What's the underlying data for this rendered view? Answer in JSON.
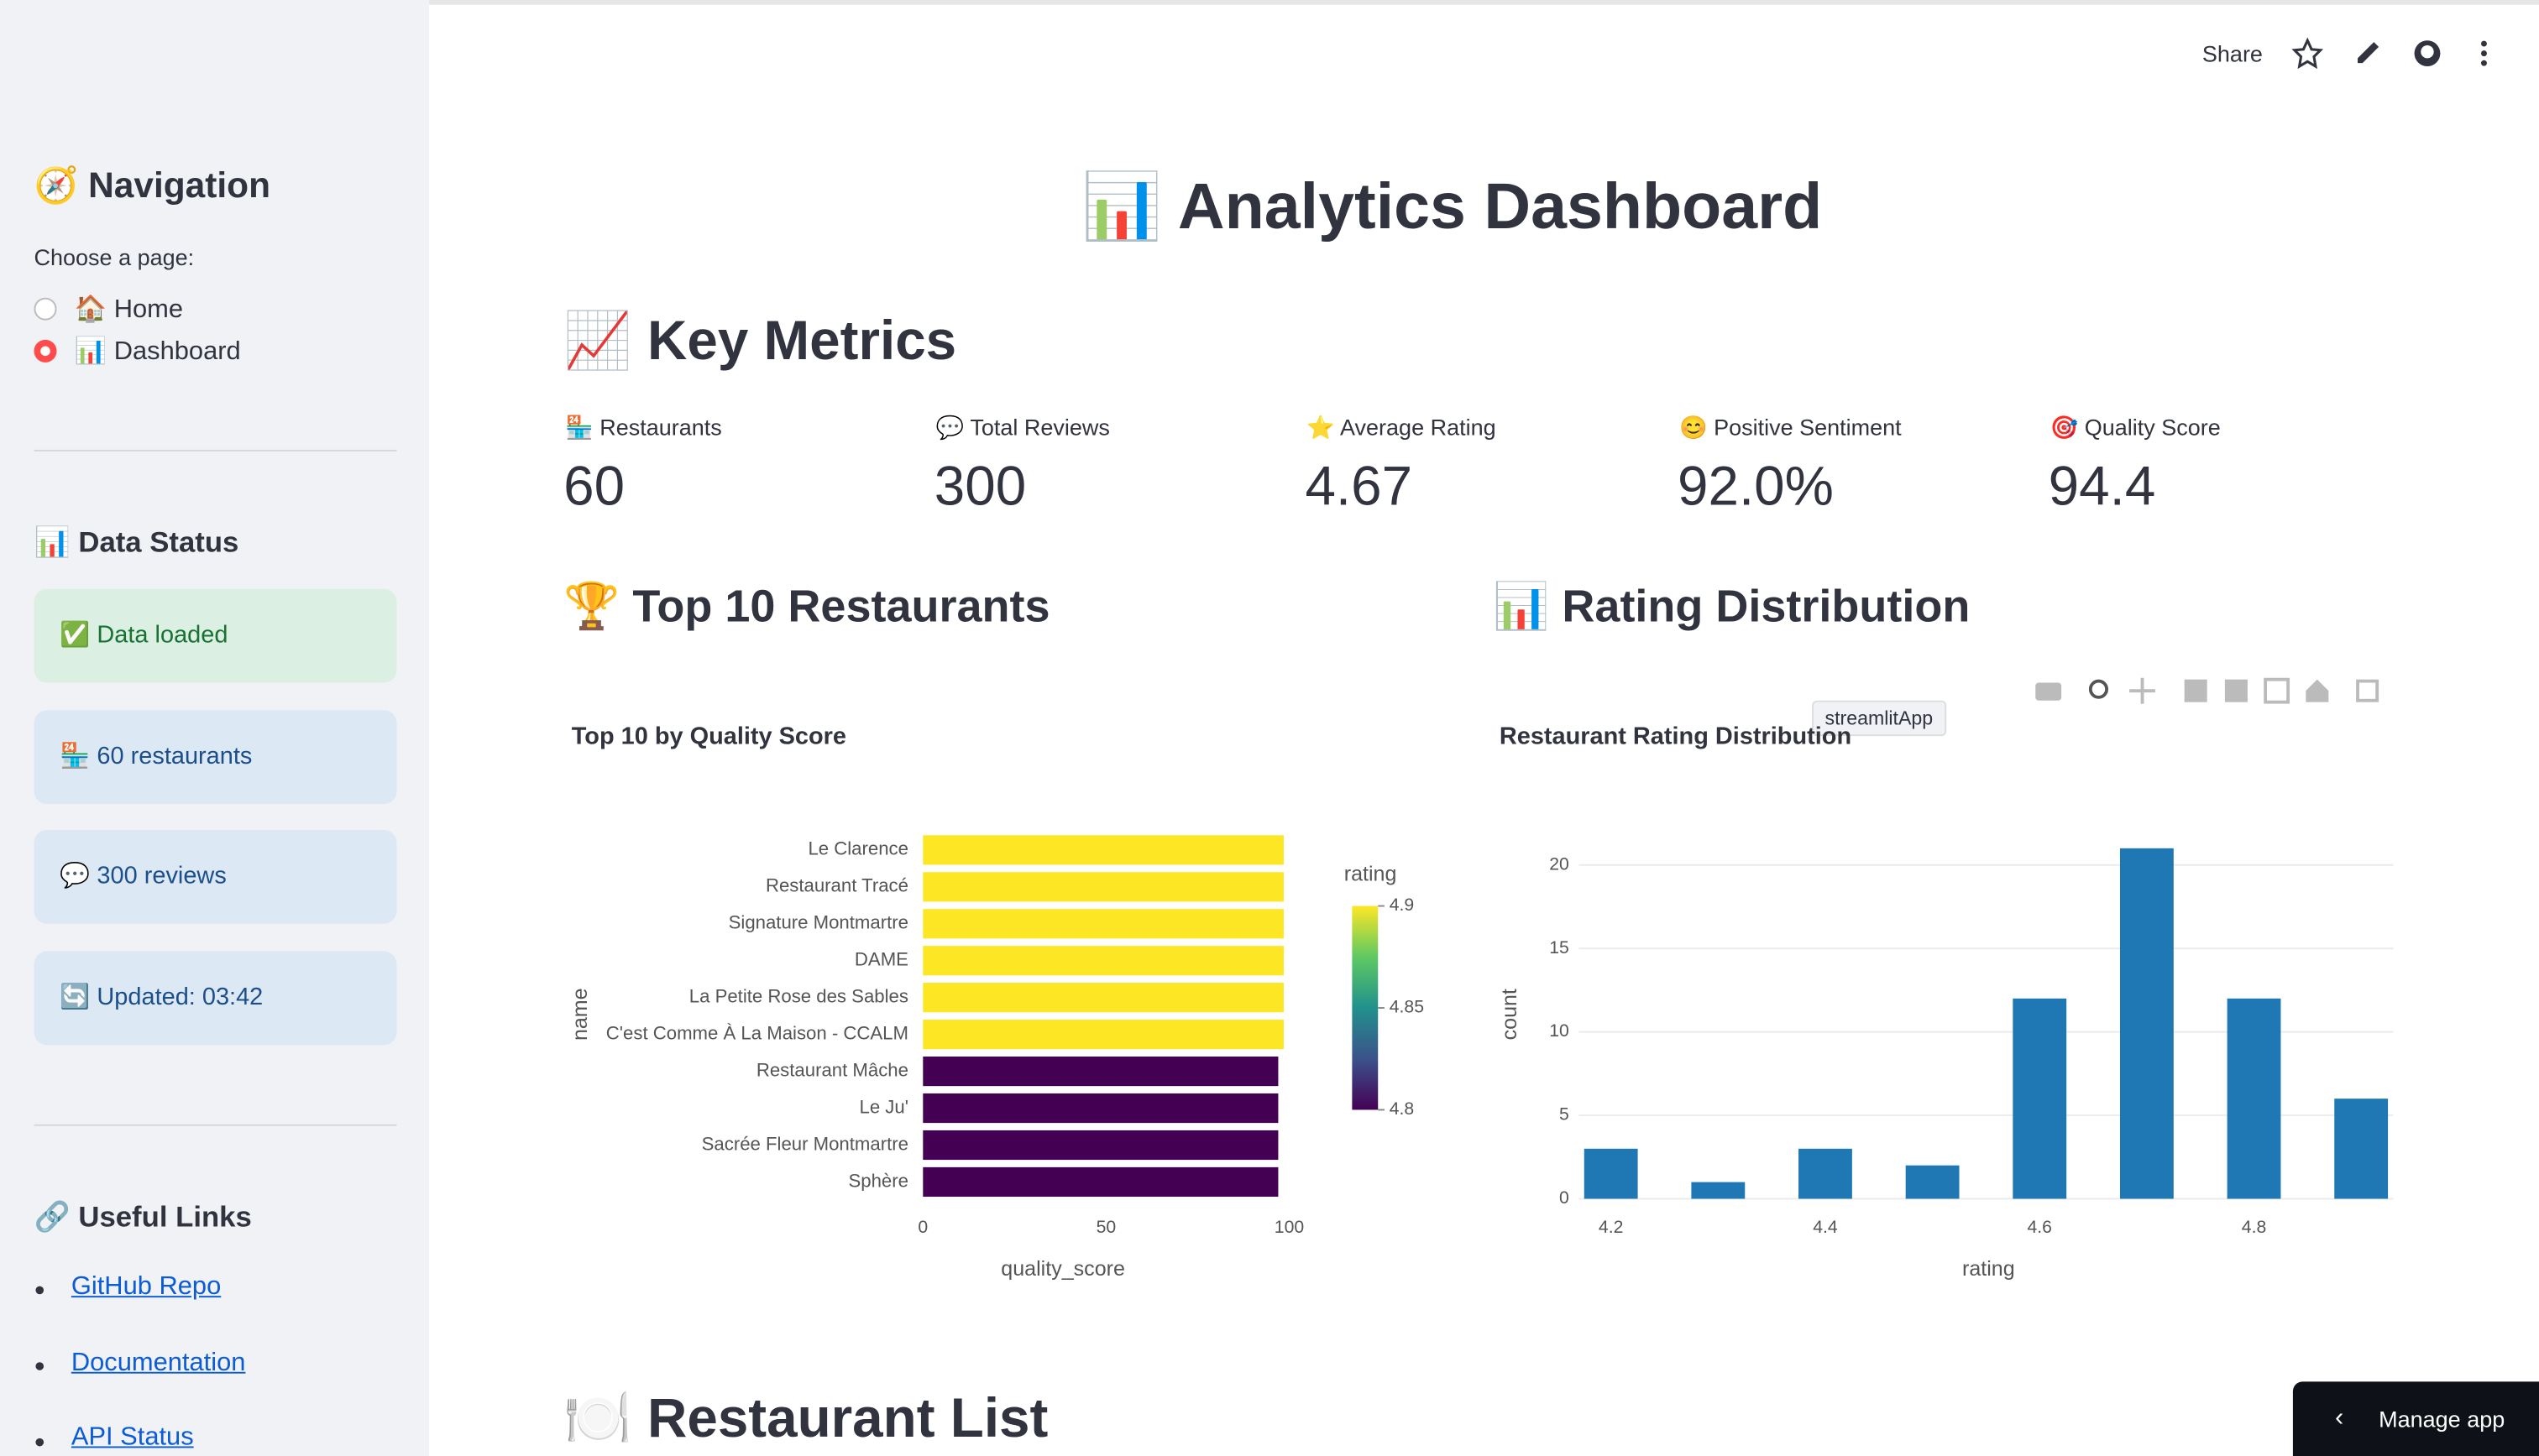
{
  "sidebar": {
    "navigation_title": "🧭 Navigation",
    "page_prompt": "Choose a page:",
    "pages": [
      "🏠 Home",
      "📊 Dashboard"
    ],
    "selected_page": "📊 Dashboard",
    "data_status_title": "📊 Data Status",
    "status_boxes": [
      "✅ Data loaded",
      "🏪 60 restaurants",
      "💬 300 reviews",
      "🔄 Updated: 03:42"
    ],
    "links_title": "🔗 Useful Links",
    "links": [
      "GitHub Repo",
      "Documentation",
      "API Status"
    ]
  },
  "header": {
    "share": "Share"
  },
  "main": {
    "title": "📊 Analytics Dashboard",
    "metrics_title": "📈 Key Metrics",
    "metrics": [
      {
        "label": "🏪 Restaurants",
        "value": "60"
      },
      {
        "label": "💬 Total Reviews",
        "value": "300"
      },
      {
        "label": "⭐ Average Rating",
        "value": "4.67"
      },
      {
        "label": "😊 Positive Sentiment",
        "value": "92.0%"
      },
      {
        "label": "🎯 Quality Score",
        "value": "94.4"
      }
    ],
    "top_title": "🏆 Top 10 Restaurants",
    "dist_title": "📊 Rating Distribution",
    "list_title": "🍽️ Restaurant List",
    "tooltip": "streamlitApp",
    "manage_app": "Manage app"
  },
  "chart_data": [
    {
      "type": "hbar",
      "title": "Top 10 by Quality Score",
      "categories": [
        "Le Clarence",
        "Restaurant Tracé",
        "Signature Montmartre",
        "DAME",
        "La Petite Rose des Sables",
        "C'est Comme À La Maison - CCALM",
        "Restaurant Mâche",
        "Le Ju'",
        "Sacrée Fleur Montmartre",
        "Sphère"
      ],
      "values": [
        98.5,
        98.5,
        98.5,
        98.5,
        98.5,
        98.5,
        97,
        97,
        97,
        97
      ],
      "ratings": [
        4.9,
        4.9,
        4.9,
        4.9,
        4.9,
        4.9,
        4.8,
        4.8,
        4.8,
        4.8
      ],
      "colorscale": [
        "#440154",
        "#3b528b",
        "#21918c",
        "#5ec962",
        "#fde725"
      ],
      "colorbar_title": "rating",
      "clim": [
        4.8,
        4.9
      ],
      "cticks": [
        4.8,
        4.85,
        4.9
      ],
      "xlabel": "quality_score",
      "ylabel": "name",
      "xlim": [
        0,
        103.9
      ],
      "xticks": [
        0,
        50,
        100
      ]
    },
    {
      "type": "histogram",
      "title": "Restaurant Rating Distribution",
      "bins": [
        4.15,
        4.25,
        4.35,
        4.45,
        4.55,
        4.65,
        4.75,
        4.85,
        4.95
      ],
      "values": [
        3,
        1,
        3,
        2,
        12,
        21,
        12,
        6
      ],
      "color": "#1f77b4",
      "xlabel": "rating",
      "ylabel": "count",
      "xlim": [
        4.17,
        4.93
      ],
      "xticks": [
        4.2,
        4.4,
        4.6,
        4.8
      ],
      "ylim": [
        0,
        22.1
      ],
      "yticks": [
        0,
        5,
        10,
        15,
        20
      ],
      "grid": true
    }
  ]
}
